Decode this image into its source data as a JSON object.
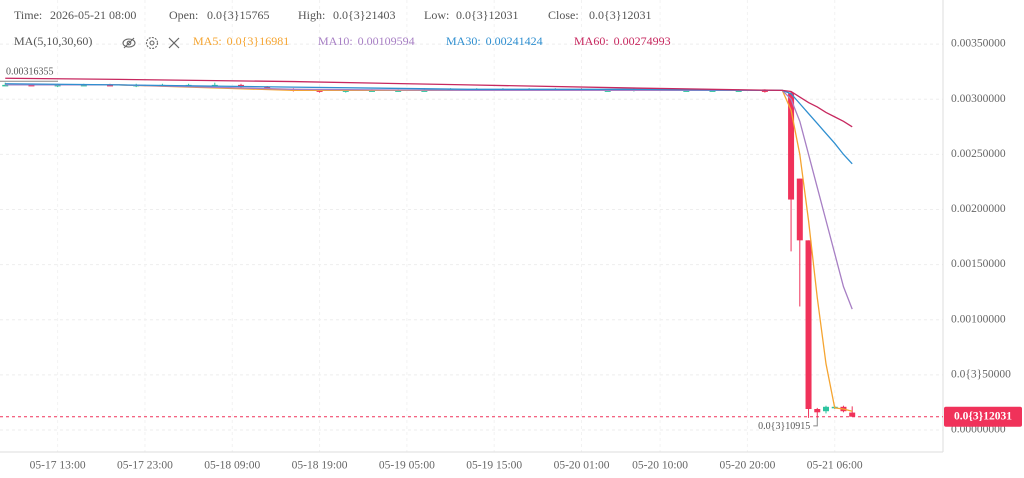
{
  "chart_data": {
    "type": "candlestick",
    "header": {
      "time_label": "Time:",
      "time": "2026-05-21 08:00",
      "open_label": "Open:",
      "open": "0.0{3}15765",
      "high_label": "High:",
      "high": "0.0{3}21403",
      "low_label": "Low:",
      "low": "0.0{3}12031",
      "close_label": "Close:",
      "close": "0.0{3}12031",
      "ma_title": "MA(5,10,30,60)"
    },
    "up_color": "#2ec4a0",
    "down_color": "#f0325a",
    "x": [
      7,
      10,
      13,
      16,
      19,
      22,
      25,
      28,
      31,
      34,
      37,
      40,
      43,
      46,
      49,
      52,
      55,
      58,
      61,
      64,
      67,
      70,
      73,
      76,
      79,
      82,
      85,
      88,
      91,
      94,
      97,
      98,
      99,
      100,
      101,
      102,
      103,
      104
    ],
    "open": [
      0.00313,
      0.00313,
      0.00312,
      0.00313,
      0.00313,
      0.00312,
      0.00313,
      0.00313,
      0.00313,
      0.00313,
      0.00311,
      0.00309,
      0.00308,
      0.00307,
      0.00308,
      0.00308,
      0.00308,
      0.00309,
      0.00309,
      0.00309,
      0.00309,
      0.00309,
      0.00309,
      0.00308,
      0.00308,
      0.00309,
      0.00308,
      0.00308,
      0.00308,
      0.00308,
      0.00306,
      0.00228,
      0.00172,
      0.00019,
      0.00017,
      0.000205,
      0.00021,
      0.00015765
    ],
    "high": [
      0.00315,
      0.00314,
      0.00314,
      0.00314,
      0.00314,
      0.00314,
      0.00314,
      0.00314,
      0.00315,
      0.00314,
      0.00312,
      0.0031,
      0.00309,
      0.00309,
      0.00309,
      0.00309,
      0.0031,
      0.0031,
      0.0031,
      0.0031,
      0.0031,
      0.0031,
      0.0031,
      0.00309,
      0.0031,
      0.0031,
      0.00309,
      0.00309,
      0.00309,
      0.00309,
      0.00307,
      0.00228,
      0.00172,
      0.0002,
      0.00022,
      0.00022,
      0.00022,
      0.00021403
    ],
    "low": [
      0.00312,
      0.00312,
      0.00311,
      0.00312,
      0.00312,
      0.00311,
      0.00312,
      0.00312,
      0.00312,
      0.0031,
      0.00309,
      0.00307,
      0.00306,
      0.00306,
      0.00307,
      0.00307,
      0.00307,
      0.00308,
      0.00308,
      0.00308,
      0.00308,
      0.00308,
      0.00308,
      0.00307,
      0.00307,
      0.00308,
      0.00307,
      0.00307,
      0.00307,
      0.00306,
      0.00162,
      0.00112,
      0.00011,
      0.00010915,
      0.00015,
      0.00019,
      0.00016,
      0.00012031
    ],
    "close": [
      0.00313,
      0.00312,
      0.00313,
      0.00313,
      0.00312,
      0.00313,
      0.00313,
      0.00313,
      0.00313,
      0.00311,
      0.00309,
      0.00308,
      0.00307,
      0.00308,
      0.00308,
      0.00308,
      0.00308,
      0.00309,
      0.00309,
      0.00309,
      0.00309,
      0.00309,
      0.00308,
      0.00308,
      0.00309,
      0.00308,
      0.00308,
      0.00308,
      0.00308,
      0.00307,
      0.00209,
      0.00172,
      0.00019,
      0.00016,
      0.00021,
      0.00021,
      0.00017,
      0.00012031
    ],
    "series": [
      {
        "name": "MA5:",
        "value_label": "0.0{3}16981",
        "color": "#f5a430",
        "x": [
          7,
          20,
          40,
          60,
          80,
          96,
          97,
          98,
          99,
          100,
          101,
          102,
          103,
          104
        ],
        "values": [
          0.00313,
          0.00313,
          0.00308,
          0.00308,
          0.00308,
          0.00308,
          0.0029,
          0.0025,
          0.0019,
          0.0012,
          0.0006,
          0.0002,
          0.00019,
          0.00016981
        ]
      },
      {
        "name": "MA10:",
        "value_label": "0.00109594",
        "color": "#a77fc4",
        "x": [
          7,
          20,
          40,
          60,
          80,
          96,
          97,
          98,
          99,
          100,
          101,
          102,
          103,
          104
        ],
        "values": [
          0.00313,
          0.00313,
          0.00309,
          0.00308,
          0.00308,
          0.00308,
          0.003,
          0.0028,
          0.0025,
          0.0022,
          0.0019,
          0.0016,
          0.0013,
          0.00109594
        ]
      },
      {
        "name": "MA30:",
        "value_label": "0.00241424",
        "color": "#2f8fd0",
        "x": [
          7,
          20,
          40,
          60,
          80,
          96,
          97,
          98,
          99,
          100,
          101,
          102,
          103,
          104
        ],
        "values": [
          0.00314,
          0.00313,
          0.00311,
          0.00309,
          0.00309,
          0.00308,
          0.00305,
          0.00296,
          0.00287,
          0.00278,
          0.00269,
          0.0026,
          0.0025,
          0.00241424
        ]
      },
      {
        "name": "MA60:",
        "value_label": "0.00274993",
        "color": "#c7285f",
        "x": [
          7,
          20,
          40,
          60,
          80,
          96,
          97,
          98,
          99,
          100,
          101,
          102,
          103,
          104
        ],
        "values": [
          0.00319,
          0.00318,
          0.00316,
          0.00313,
          0.0031,
          0.00308,
          0.00307,
          0.00302,
          0.00297,
          0.00293,
          0.00288,
          0.00284,
          0.0028,
          0.00274993
        ]
      }
    ],
    "max_marker": 0.00316355,
    "min_marker": {
      "value": 0.00010915,
      "label": "0.0{3}10915"
    },
    "last_price": {
      "value": 0.00012031,
      "label": "0.0{3}12031"
    },
    "xlim": [
      6.4,
      114.4
    ],
    "xticks": [
      {
        "value": 13,
        "label": "05-17 13:00"
      },
      {
        "value": 23,
        "label": "05-17 23:00"
      },
      {
        "value": 33,
        "label": "05-18 09:00"
      },
      {
        "value": 43,
        "label": "05-18 19:00"
      },
      {
        "value": 53,
        "label": "05-19 05:00"
      },
      {
        "value": 63,
        "label": "05-19 15:00"
      },
      {
        "value": 73,
        "label": "05-20 01:00"
      },
      {
        "value": 82,
        "label": "05-20 10:00"
      },
      {
        "value": 92,
        "label": "05-20 20:00"
      },
      {
        "value": 102,
        "label": "05-21 06:00"
      }
    ],
    "ylim": [
      -0.0002,
      0.0039
    ],
    "yticks": [
      {
        "value": 0,
        "label": "0.00000000"
      },
      {
        "value": 0.0005,
        "label": "0.0{3}50000"
      },
      {
        "value": 0.001,
        "label": "0.00100000"
      },
      {
        "value": 0.0015,
        "label": "0.00150000"
      },
      {
        "value": 0.002,
        "label": "0.00200000"
      },
      {
        "value": 0.0025,
        "label": "0.00250000"
      },
      {
        "value": 0.003,
        "label": "0.00300000"
      },
      {
        "value": 0.0035,
        "label": "0.00350000"
      }
    ],
    "grid": true
  }
}
